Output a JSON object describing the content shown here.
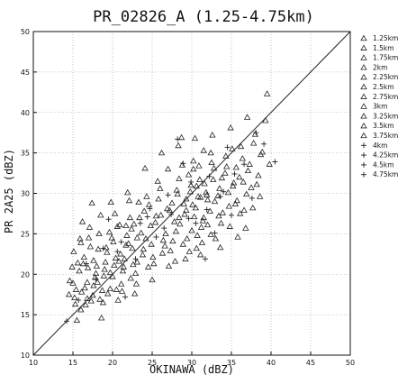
{
  "chart_data": {
    "type": "scatter",
    "title": "PR_02826_A (1.25-4.75km)",
    "xlabel": "OKINAWA (dBZ)",
    "ylabel": "PR 2A25 (dBZ)",
    "xlim": [
      10,
      50
    ],
    "ylim": [
      10,
      50
    ],
    "xticks": [
      10,
      15,
      20,
      25,
      30,
      35,
      40,
      45,
      50
    ],
    "yticks": [
      10,
      15,
      20,
      25,
      30,
      35,
      40,
      45,
      50
    ],
    "grid": true,
    "legend_position": "right, outside plot",
    "reference_line": "1:1 diagonal",
    "series": [
      {
        "name": "1.25km",
        "marker": "triangle",
        "points": [
          [
            14.5,
            17.5
          ],
          [
            15.0,
            18.9
          ],
          [
            15.3,
            16.3
          ],
          [
            15.8,
            20.4
          ],
          [
            16.1,
            17.8
          ],
          [
            16.4,
            22.1
          ],
          [
            16.8,
            19.0
          ],
          [
            17.2,
            23.4
          ],
          [
            17.6,
            18.6
          ],
          [
            18.0,
            21.0
          ],
          [
            18.4,
            16.9
          ],
          [
            18.9,
            19.8
          ],
          [
            19.3,
            22.7
          ],
          [
            19.7,
            20.2
          ],
          [
            20.1,
            24.0
          ],
          [
            20.5,
            18.1
          ],
          [
            21.0,
            22.5
          ],
          [
            21.4,
            20.9
          ],
          [
            21.8,
            24.8
          ],
          [
            22.3,
            19.5
          ]
        ]
      },
      {
        "name": "1.5km",
        "marker": "triangle",
        "points": [
          [
            14.6,
            19.2
          ],
          [
            15.2,
            17.1
          ],
          [
            15.6,
            21.4
          ],
          [
            16.0,
            15.6
          ],
          [
            16.5,
            18.3
          ],
          [
            16.9,
            20.8
          ],
          [
            17.3,
            16.7
          ],
          [
            17.8,
            19.6
          ],
          [
            18.2,
            23.1
          ],
          [
            18.7,
            18.0
          ],
          [
            19.1,
            21.5
          ],
          [
            19.6,
            25.2
          ],
          [
            20.0,
            19.7
          ],
          [
            20.4,
            22.0
          ],
          [
            20.9,
            26.1
          ],
          [
            21.3,
            20.4
          ],
          [
            21.7,
            23.6
          ],
          [
            22.2,
            27.0
          ],
          [
            22.6,
            21.2
          ],
          [
            23.1,
            24.5
          ]
        ]
      },
      {
        "name": "1.75km",
        "marker": "triangle",
        "points": [
          [
            15.1,
            22.8
          ],
          [
            15.5,
            14.3
          ],
          [
            16.0,
            23.9
          ],
          [
            16.6,
            16.2
          ],
          [
            17.0,
            24.5
          ],
          [
            17.5,
            17.4
          ],
          [
            17.9,
            20.1
          ],
          [
            18.3,
            25.0
          ],
          [
            18.8,
            16.5
          ],
          [
            19.2,
            23.3
          ],
          [
            19.7,
            18.2
          ],
          [
            20.2,
            21.1
          ],
          [
            20.6,
            25.9
          ],
          [
            21.1,
            18.8
          ],
          [
            21.5,
            21.9
          ],
          [
            22.0,
            23.8
          ],
          [
            22.4,
            25.6
          ],
          [
            22.9,
            20.1
          ],
          [
            23.3,
            28.9
          ],
          [
            23.8,
            22.4
          ]
        ]
      },
      {
        "name": "2km",
        "marker": "triangle",
        "points": [
          [
            22.7,
            26.2
          ],
          [
            23.1,
            21.5
          ],
          [
            23.6,
            25.1
          ],
          [
            24.0,
            27.8
          ],
          [
            24.5,
            20.9
          ],
          [
            24.9,
            23.7
          ],
          [
            25.4,
            26.4
          ],
          [
            25.8,
            29.3
          ],
          [
            26.3,
            22.6
          ],
          [
            26.7,
            25.0
          ],
          [
            27.2,
            27.9
          ],
          [
            27.6,
            24.1
          ],
          [
            28.1,
            30.4
          ],
          [
            28.5,
            26.2
          ],
          [
            29.0,
            28.7
          ],
          [
            29.4,
            24.4
          ],
          [
            29.9,
            31.0
          ],
          [
            30.3,
            27.1
          ],
          [
            30.8,
            29.6
          ],
          [
            31.2,
            25.8
          ]
        ]
      },
      {
        "name": "2.25km",
        "marker": "triangle",
        "points": [
          [
            24.2,
            24.4
          ],
          [
            24.6,
            28.6
          ],
          [
            25.1,
            22.1
          ],
          [
            25.5,
            27.2
          ],
          [
            26.0,
            30.6
          ],
          [
            26.4,
            24.2
          ],
          [
            26.9,
            28.1
          ],
          [
            27.3,
            22.9
          ],
          [
            27.8,
            26.5
          ],
          [
            28.2,
            29.9
          ],
          [
            28.7,
            36.9
          ],
          [
            29.1,
            27.4
          ],
          [
            29.6,
            32.3
          ],
          [
            30.0,
            25.4
          ],
          [
            30.5,
            28.2
          ],
          [
            30.9,
            33.4
          ],
          [
            31.4,
            26.6
          ],
          [
            31.8,
            30.1
          ],
          [
            32.3,
            27.8
          ],
          [
            32.7,
            31.7
          ]
        ]
      },
      {
        "name": "2.5km",
        "marker": "triangle",
        "points": [
          [
            28.0,
            25.3
          ],
          [
            28.4,
            31.8
          ],
          [
            28.9,
            23.7
          ],
          [
            29.3,
            27.9
          ],
          [
            29.8,
            30.2
          ],
          [
            30.2,
            33.0
          ],
          [
            30.7,
            24.8
          ],
          [
            31.1,
            29.5
          ],
          [
            31.6,
            31.2
          ],
          [
            32.0,
            26.1
          ],
          [
            32.5,
            33.8
          ],
          [
            32.9,
            29.0
          ],
          [
            33.4,
            27.2
          ],
          [
            33.8,
            31.9
          ],
          [
            34.3,
            34.6
          ],
          [
            34.7,
            28.4
          ],
          [
            35.2,
            30.9
          ],
          [
            35.6,
            33.2
          ],
          [
            36.1,
            27.5
          ],
          [
            36.5,
            31.4
          ]
        ]
      },
      {
        "name": "2.75km",
        "marker": "triangle",
        "points": [
          [
            30.1,
            28.6
          ],
          [
            30.6,
            23.2
          ],
          [
            31.0,
            31.7
          ],
          [
            31.5,
            27.0
          ],
          [
            31.9,
            29.8
          ],
          [
            32.4,
            24.9
          ],
          [
            32.8,
            33.1
          ],
          [
            33.3,
            29.7
          ],
          [
            33.7,
            26.3
          ],
          [
            34.2,
            32.5
          ],
          [
            34.6,
            30.1
          ],
          [
            35.1,
            35.5
          ],
          [
            35.5,
            28.7
          ],
          [
            36.0,
            32.0
          ],
          [
            36.4,
            34.3
          ],
          [
            36.9,
            29.9
          ],
          [
            37.3,
            33.6
          ],
          [
            37.8,
            36.2
          ],
          [
            38.2,
            31.1
          ],
          [
            38.7,
            34.8
          ]
        ]
      },
      {
        "name": "3km",
        "marker": "triangle",
        "points": [
          [
            33.0,
            24.4
          ],
          [
            33.5,
            30.6
          ],
          [
            33.9,
            27.6
          ],
          [
            34.4,
            33.3
          ],
          [
            34.8,
            25.9
          ],
          [
            35.3,
            31.3
          ],
          [
            35.7,
            29.1
          ],
          [
            36.2,
            35.8
          ],
          [
            36.6,
            27.9
          ],
          [
            37.1,
            32.8
          ],
          [
            37.5,
            30.7
          ],
          [
            38.0,
            37.3
          ],
          [
            38.4,
            32.2
          ],
          [
            38.9,
            35.1
          ],
          [
            39.3,
            39.0
          ],
          [
            39.8,
            33.6
          ],
          [
            37.7,
            28.2
          ],
          [
            36.8,
            25.7
          ],
          [
            38.6,
            29.6
          ],
          [
            39.5,
            42.3
          ]
        ]
      },
      {
        "name": "3.25km",
        "marker": "triangle",
        "points": [
          [
            14.9,
            20.9
          ],
          [
            15.4,
            18.1
          ],
          [
            15.9,
            24.4
          ],
          [
            16.3,
            21.3
          ],
          [
            16.8,
            17.0
          ],
          [
            17.1,
            25.8
          ],
          [
            17.6,
            21.7
          ],
          [
            18.1,
            19.0
          ],
          [
            18.5,
            27.3
          ],
          [
            19.0,
            20.6
          ],
          [
            19.4,
            17.6
          ],
          [
            19.9,
            24.5
          ],
          [
            20.3,
            27.5
          ],
          [
            20.8,
            21.6
          ],
          [
            21.2,
            17.9
          ],
          [
            21.7,
            26.0
          ],
          [
            22.1,
            29.1
          ],
          [
            22.5,
            23.2
          ],
          [
            23.0,
            18.8
          ],
          [
            23.4,
            27.0
          ]
        ]
      },
      {
        "name": "3.5km",
        "marker": "triangle",
        "points": [
          [
            23.9,
            23.1
          ],
          [
            24.3,
            29.6
          ],
          [
            24.8,
            26.0
          ],
          [
            25.2,
            21.3
          ],
          [
            25.7,
            31.5
          ],
          [
            26.1,
            27.3
          ],
          [
            26.6,
            23.5
          ],
          [
            27.0,
            33.0
          ],
          [
            27.5,
            28.8
          ],
          [
            27.9,
            21.6
          ],
          [
            28.4,
            27.0
          ],
          [
            28.8,
            33.5
          ],
          [
            29.3,
            29.3
          ],
          [
            29.7,
            22.8
          ],
          [
            30.2,
            34.0
          ],
          [
            30.6,
            30.9
          ],
          [
            31.1,
            22.4
          ],
          [
            31.5,
            35.3
          ],
          [
            32.0,
            29.2
          ],
          [
            32.4,
            35.0
          ]
        ]
      },
      {
        "name": "3.75km",
        "marker": "triangle",
        "points": [
          [
            16.2,
            26.5
          ],
          [
            17.4,
            28.8
          ],
          [
            18.6,
            14.6
          ],
          [
            19.8,
            28.9
          ],
          [
            20.7,
            16.8
          ],
          [
            21.9,
            30.1
          ],
          [
            22.8,
            17.6
          ],
          [
            24.1,
            33.1
          ],
          [
            25.0,
            19.3
          ],
          [
            26.2,
            35.0
          ],
          [
            27.1,
            21.0
          ],
          [
            28.3,
            35.9
          ],
          [
            29.2,
            21.9
          ],
          [
            30.4,
            36.8
          ],
          [
            31.3,
            23.9
          ],
          [
            32.6,
            37.2
          ],
          [
            33.6,
            23.3
          ],
          [
            34.9,
            38.1
          ],
          [
            35.8,
            24.6
          ],
          [
            37.0,
            39.4
          ]
        ]
      },
      {
        "name": "4km",
        "marker": "plus",
        "points": [
          [
            14.2,
            14.2
          ],
          [
            18.8,
            23.2
          ],
          [
            21.6,
            17.2
          ],
          [
            24.7,
            28.1
          ],
          [
            27.4,
            27.4
          ],
          [
            29.9,
            31.4
          ],
          [
            31.7,
            21.9
          ],
          [
            33.6,
            29.6
          ],
          [
            34.5,
            35.7
          ]
        ]
      },
      {
        "name": "4.25km",
        "marker": "plus",
        "points": [
          [
            16.7,
            21.3
          ],
          [
            19.5,
            26.8
          ],
          [
            22.9,
            21.9
          ],
          [
            25.5,
            24.6
          ],
          [
            28.9,
            33.7
          ],
          [
            30.5,
            26.3
          ],
          [
            32.9,
            25.1
          ],
          [
            35.4,
            32.4
          ],
          [
            38.1,
            37.5
          ]
        ]
      },
      {
        "name": "4.5km",
        "marker": "plus",
        "points": [
          [
            17.9,
            19.4
          ],
          [
            20.6,
            22.8
          ],
          [
            23.5,
            26.3
          ],
          [
            26.5,
            25.7
          ],
          [
            28.2,
            36.7
          ],
          [
            31.9,
            28.0
          ],
          [
            34.0,
            30.2
          ],
          [
            36.6,
            33.6
          ],
          [
            39.1,
            36.1
          ]
        ]
      },
      {
        "name": "4.75km",
        "marker": "plus",
        "points": [
          [
            15.7,
            16.8
          ],
          [
            21.1,
            24.0
          ],
          [
            24.4,
            27.1
          ],
          [
            27.0,
            29.8
          ],
          [
            29.6,
            26.9
          ],
          [
            32.2,
            32.1
          ],
          [
            35.0,
            27.3
          ],
          [
            37.6,
            29.4
          ],
          [
            40.5,
            33.9
          ]
        ]
      }
    ]
  }
}
